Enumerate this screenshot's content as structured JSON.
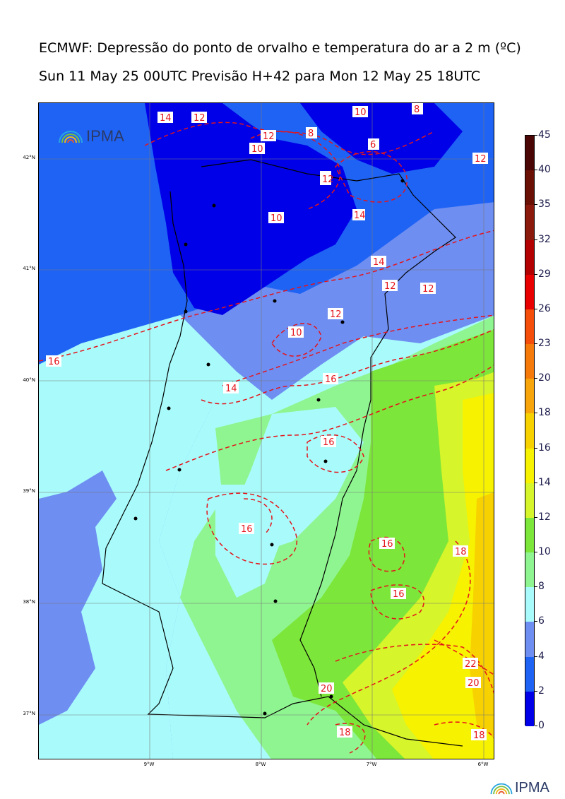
{
  "header": {
    "title": "ECMWF: Depressão do ponto de orvalho e temperatura do ar a 2 m (ºC)",
    "subtitle": "Sun 11 May 25 00UTC Previsão H+42 para Mon 12 May 25 18UTC"
  },
  "map": {
    "lat_labels": [
      "42°N",
      "41°N",
      "40°N",
      "39°N",
      "38°N",
      "37°N"
    ],
    "lon_labels": [
      "9°W",
      "8°W",
      "7°W",
      "6°W"
    ],
    "contour_labels": [
      "14",
      "12",
      "10",
      "8",
      "6",
      "10",
      "12",
      "10",
      "12",
      "10",
      "12",
      "14",
      "14",
      "12",
      "12",
      "12",
      "10",
      "16",
      "16",
      "14",
      "16",
      "16",
      "16",
      "16",
      "18",
      "16",
      "22",
      "20",
      "20",
      "18",
      "18"
    ],
    "colors": {
      "ocean_dep_4_6": "#6e8ef2",
      "dep_0_2": "#0000e8",
      "dep_2_4": "#1f63f5",
      "dep_6_8": "#a9fbfb",
      "dep_8_10": "#8ff590",
      "dep_10_12": "#7de63a",
      "dep_12_14": "#d6f52a",
      "dep_14_16": "#f7f200",
      "dep_16_18": "#f7d100",
      "contour": "#e4141b"
    }
  },
  "colorbar": {
    "labels": [
      "45",
      "40",
      "35",
      "32",
      "29",
      "26",
      "23",
      "20",
      "18",
      "16",
      "14",
      "12",
      "10",
      "8",
      "6",
      "4",
      "2",
      "0"
    ],
    "colors": [
      "#4a0505",
      "#6b1005",
      "#8b1a0d",
      "#b30000",
      "#e80000",
      "#f54d0a",
      "#f57a0a",
      "#f7a50a",
      "#f7d100",
      "#f7f200",
      "#d6f52a",
      "#7de63a",
      "#8ff590",
      "#a9fbfb",
      "#6e8ef2",
      "#1f63f5",
      "#0000e8"
    ]
  },
  "logos": {
    "map_logo_text": "IPMA",
    "footer_logo_text": "IPMA"
  }
}
